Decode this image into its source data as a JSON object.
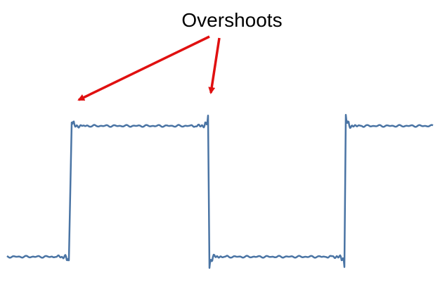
{
  "annotation": {
    "label": "Overshoots",
    "arrow_color": "#e01010"
  },
  "signal": {
    "color": "#4a74a4",
    "shape": "square wave with Gibbs ringing at each edge"
  }
}
